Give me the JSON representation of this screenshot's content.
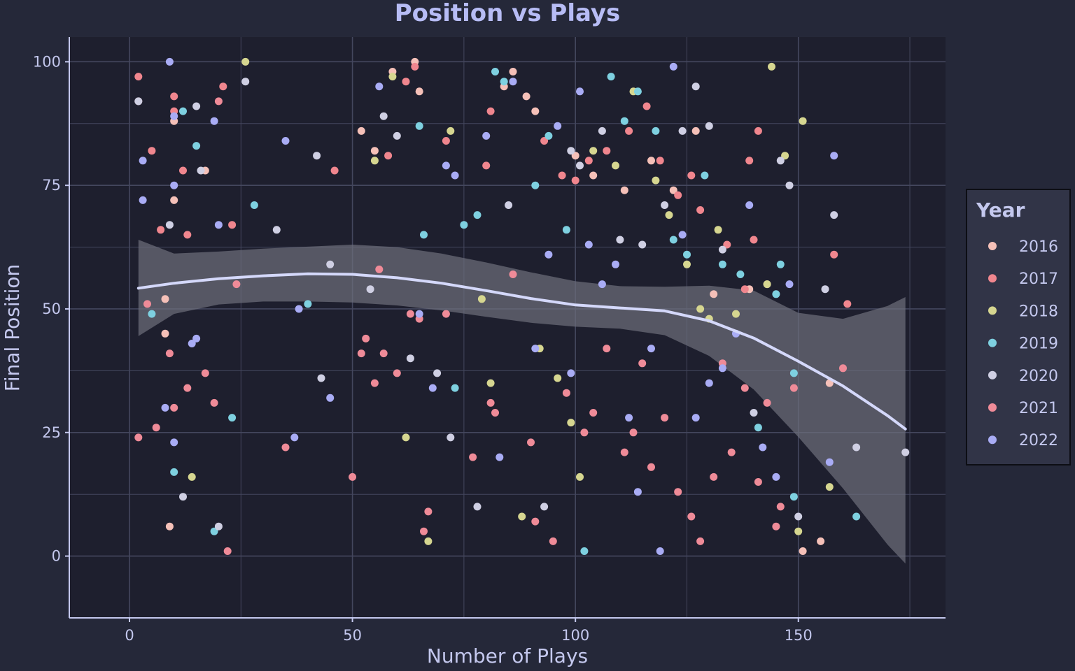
{
  "chart_data": {
    "type": "scatter",
    "title": "Position vs Plays",
    "xlabel": "Number of Plays",
    "ylabel": "Final Position",
    "xlim": [
      -13.5,
      183
    ],
    "ylim": [
      -12.5,
      105
    ],
    "x_ticks": [
      0,
      50,
      100,
      150
    ],
    "y_ticks": [
      0,
      25,
      50,
      75,
      100
    ],
    "x_minor_ticks": [
      25,
      75,
      125,
      175
    ],
    "y_minor_ticks": [
      12.5,
      37.5,
      62.5,
      87.5
    ],
    "grid": true,
    "legend": {
      "title": "Year",
      "placement": "right"
    },
    "colors": {
      "background": "#252839",
      "panel": "#1e1f2e",
      "grid": "#44475e",
      "axis": "#c4c8ee",
      "trend": "#d4d8fa",
      "band": "#6e6f7c"
    },
    "series": [
      {
        "name": "2016",
        "color": "#f5c0b8",
        "points": [
          [
            2,
            92
          ],
          [
            8,
            52
          ],
          [
            9,
            6
          ],
          [
            10,
            88
          ],
          [
            10,
            72
          ],
          [
            17,
            78
          ],
          [
            55,
            82
          ],
          [
            59,
            98
          ],
          [
            65,
            94
          ],
          [
            84,
            95
          ],
          [
            86,
            98
          ],
          [
            89,
            93
          ],
          [
            91,
            90
          ],
          [
            100,
            81
          ],
          [
            104,
            77
          ],
          [
            111,
            74
          ],
          [
            117,
            80
          ],
          [
            122,
            74
          ],
          [
            127,
            86
          ],
          [
            131,
            53
          ],
          [
            139,
            54
          ],
          [
            143,
            55
          ],
          [
            151,
            1
          ],
          [
            155,
            3
          ],
          [
            157,
            35
          ],
          [
            8,
            45
          ],
          [
            52,
            86
          ],
          [
            64,
            100
          ]
        ]
      },
      {
        "name": "2017",
        "color": "#f0868e",
        "points": [
          [
            2,
            97
          ],
          [
            5,
            82
          ],
          [
            7,
            66
          ],
          [
            10,
            93
          ],
          [
            10,
            90
          ],
          [
            12,
            78
          ],
          [
            13,
            65
          ],
          [
            21,
            95
          ],
          [
            23,
            67
          ],
          [
            46,
            78
          ],
          [
            58,
            81
          ],
          [
            62,
            96
          ],
          [
            64,
            99
          ],
          [
            71,
            84
          ],
          [
            80,
            79
          ],
          [
            81,
            90
          ],
          [
            93,
            84
          ],
          [
            97,
            77
          ],
          [
            100,
            76
          ],
          [
            103,
            80
          ],
          [
            107,
            82
          ],
          [
            112,
            86
          ],
          [
            116,
            91
          ],
          [
            119,
            80
          ],
          [
            123,
            73
          ],
          [
            126,
            77
          ],
          [
            128,
            70
          ],
          [
            134,
            63
          ],
          [
            138,
            54
          ],
          [
            140,
            64
          ],
          [
            158,
            61
          ],
          [
            161,
            51
          ],
          [
            139,
            80
          ],
          [
            141,
            86
          ]
        ]
      },
      {
        "name": "2018",
        "color": "#d6d690",
        "points": [
          [
            14,
            16
          ],
          [
            26,
            100
          ],
          [
            55,
            80
          ],
          [
            59,
            97
          ],
          [
            62,
            24
          ],
          [
            67,
            3
          ],
          [
            72,
            86
          ],
          [
            79,
            52
          ],
          [
            81,
            35
          ],
          [
            88,
            8
          ],
          [
            92,
            42
          ],
          [
            96,
            36
          ],
          [
            99,
            27
          ],
          [
            101,
            16
          ],
          [
            104,
            82
          ],
          [
            109,
            79
          ],
          [
            113,
            94
          ],
          [
            118,
            76
          ],
          [
            121,
            69
          ],
          [
            125,
            59
          ],
          [
            128,
            50
          ],
          [
            130,
            48
          ],
          [
            132,
            66
          ],
          [
            136,
            49
          ],
          [
            144,
            99
          ],
          [
            147,
            81
          ],
          [
            150,
            5
          ],
          [
            151,
            88
          ],
          [
            157,
            14
          ],
          [
            143,
            55
          ]
        ]
      },
      {
        "name": "2019",
        "color": "#7ed0e0",
        "points": [
          [
            5,
            49
          ],
          [
            10,
            17
          ],
          [
            12,
            90
          ],
          [
            15,
            83
          ],
          [
            19,
            5
          ],
          [
            23,
            28
          ],
          [
            28,
            71
          ],
          [
            40,
            51
          ],
          [
            65,
            87
          ],
          [
            66,
            65
          ],
          [
            73,
            34
          ],
          [
            75,
            67
          ],
          [
            78,
            69
          ],
          [
            82,
            98
          ],
          [
            84,
            96
          ],
          [
            91,
            75
          ],
          [
            94,
            85
          ],
          [
            98,
            66
          ],
          [
            102,
            1
          ],
          [
            108,
            97
          ],
          [
            111,
            88
          ],
          [
            114,
            94
          ],
          [
            118,
            86
          ],
          [
            122,
            64
          ],
          [
            125,
            61
          ],
          [
            129,
            77
          ],
          [
            133,
            59
          ],
          [
            137,
            57
          ],
          [
            141,
            26
          ],
          [
            145,
            53
          ],
          [
            146,
            59
          ],
          [
            149,
            12
          ],
          [
            163,
            8
          ],
          [
            149,
            37
          ]
        ]
      },
      {
        "name": "2020",
        "color": "#cfcfe3",
        "points": [
          [
            2,
            92
          ],
          [
            9,
            67
          ],
          [
            12,
            12
          ],
          [
            15,
            91
          ],
          [
            16,
            78
          ],
          [
            20,
            6
          ],
          [
            26,
            96
          ],
          [
            33,
            66
          ],
          [
            42,
            81
          ],
          [
            43,
            36
          ],
          [
            45,
            59
          ],
          [
            54,
            54
          ],
          [
            57,
            89
          ],
          [
            60,
            85
          ],
          [
            63,
            40
          ],
          [
            69,
            37
          ],
          [
            72,
            24
          ],
          [
            78,
            10
          ],
          [
            85,
            71
          ],
          [
            93,
            10
          ],
          [
            99,
            82
          ],
          [
            101,
            79
          ],
          [
            106,
            86
          ],
          [
            110,
            64
          ],
          [
            115,
            63
          ],
          [
            120,
            71
          ],
          [
            124,
            86
          ],
          [
            127,
            95
          ],
          [
            130,
            87
          ],
          [
            133,
            62
          ],
          [
            140,
            29
          ],
          [
            146,
            80
          ],
          [
            148,
            75
          ],
          [
            150,
            8
          ],
          [
            156,
            54
          ],
          [
            163,
            22
          ],
          [
            174,
            21
          ],
          [
            158,
            69
          ]
        ]
      },
      {
        "name": "2021",
        "color": "#ef8b98",
        "points": [
          [
            2,
            24
          ],
          [
            4,
            51
          ],
          [
            6,
            26
          ],
          [
            9,
            41
          ],
          [
            10,
            30
          ],
          [
            13,
            34
          ],
          [
            17,
            37
          ],
          [
            19,
            31
          ],
          [
            20,
            92
          ],
          [
            22,
            1
          ],
          [
            24,
            55
          ],
          [
            35,
            22
          ],
          [
            50,
            16
          ],
          [
            52,
            41
          ],
          [
            53,
            44
          ],
          [
            55,
            35
          ],
          [
            56,
            58
          ],
          [
            57,
            41
          ],
          [
            60,
            37
          ],
          [
            63,
            49
          ],
          [
            65,
            48
          ],
          [
            66,
            5
          ],
          [
            67,
            9
          ],
          [
            71,
            49
          ],
          [
            77,
            20
          ],
          [
            81,
            31
          ],
          [
            82,
            29
          ],
          [
            86,
            57
          ],
          [
            90,
            23
          ],
          [
            91,
            7
          ],
          [
            95,
            3
          ],
          [
            98,
            33
          ],
          [
            102,
            25
          ],
          [
            104,
            29
          ],
          [
            107,
            42
          ],
          [
            111,
            21
          ],
          [
            113,
            25
          ],
          [
            115,
            39
          ],
          [
            117,
            18
          ],
          [
            120,
            28
          ],
          [
            123,
            13
          ],
          [
            126,
            8
          ],
          [
            128,
            3
          ],
          [
            131,
            16
          ],
          [
            133,
            39
          ],
          [
            135,
            21
          ],
          [
            138,
            34
          ],
          [
            141,
            15
          ],
          [
            143,
            31
          ],
          [
            145,
            6
          ],
          [
            146,
            10
          ],
          [
            149,
            34
          ],
          [
            160,
            38
          ]
        ]
      },
      {
        "name": "2022",
        "color": "#a9acf5",
        "points": [
          [
            3,
            80
          ],
          [
            3,
            72
          ],
          [
            8,
            30
          ],
          [
            9,
            100
          ],
          [
            10,
            89
          ],
          [
            10,
            75
          ],
          [
            10,
            23
          ],
          [
            14,
            43
          ],
          [
            15,
            44
          ],
          [
            19,
            88
          ],
          [
            20,
            67
          ],
          [
            35,
            84
          ],
          [
            37,
            24
          ],
          [
            38,
            50
          ],
          [
            45,
            32
          ],
          [
            56,
            95
          ],
          [
            65,
            49
          ],
          [
            68,
            34
          ],
          [
            71,
            79
          ],
          [
            73,
            77
          ],
          [
            80,
            85
          ],
          [
            83,
            20
          ],
          [
            86,
            96
          ],
          [
            91,
            42
          ],
          [
            94,
            61
          ],
          [
            96,
            87
          ],
          [
            99,
            37
          ],
          [
            101,
            94
          ],
          [
            103,
            63
          ],
          [
            106,
            55
          ],
          [
            109,
            59
          ],
          [
            112,
            28
          ],
          [
            114,
            13
          ],
          [
            117,
            42
          ],
          [
            119,
            1
          ],
          [
            122,
            99
          ],
          [
            124,
            65
          ],
          [
            127,
            28
          ],
          [
            130,
            35
          ],
          [
            133,
            38
          ],
          [
            136,
            45
          ],
          [
            139,
            71
          ],
          [
            142,
            22
          ],
          [
            145,
            16
          ],
          [
            148,
            55
          ],
          [
            157,
            19
          ],
          [
            158,
            81
          ]
        ]
      }
    ],
    "trend": {
      "x": [
        2,
        10,
        20,
        30,
        40,
        50,
        60,
        70,
        80,
        90,
        100,
        110,
        120,
        130,
        140,
        150,
        160,
        170,
        174
      ],
      "y": [
        54.2,
        55.2,
        56.1,
        56.7,
        57.1,
        57.0,
        56.3,
        55.2,
        53.7,
        52.1,
        50.8,
        50.2,
        49.6,
        47.6,
        44.1,
        39.4,
        34.4,
        28.4,
        25.7
      ],
      "lower": [
        44.5,
        49.0,
        50.9,
        51.5,
        51.5,
        51.3,
        50.7,
        49.7,
        48.4,
        47.2,
        46.4,
        46.0,
        44.7,
        40.5,
        33.7,
        24.1,
        13.7,
        2.3,
        -1.5
      ],
      "upper": [
        64.0,
        61.2,
        61.6,
        62.2,
        62.6,
        63.0,
        62.5,
        61.2,
        59.4,
        57.4,
        55.6,
        54.6,
        54.5,
        54.7,
        53.7,
        49.2,
        48.0,
        50.6,
        52.4
      ]
    }
  }
}
